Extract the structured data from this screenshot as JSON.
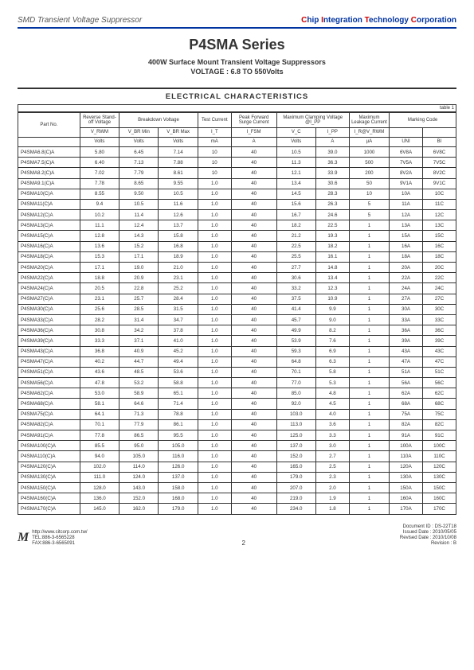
{
  "header": {
    "left": "SMD Transient Voltage Suppressor",
    "right_parts": [
      "C",
      "hip ",
      "I",
      "ntegration ",
      "T",
      "echnology ",
      "C",
      "orporation"
    ]
  },
  "title": "P4SMA Series",
  "subtitle_line1": "400W Surface Mount Transient Voltage Suppressors",
  "subtitle_line2": "VOLTAGE : 6.8 TO 550Volts",
  "section": "ELECTRICAL CHARACTERISTICS",
  "table_label": "table 1",
  "columns_group": [
    {
      "label": "Part No.",
      "span": 1,
      "rowspan": 2
    },
    {
      "label": "Reverse Stand-off Voltage",
      "span": 1
    },
    {
      "label": "Breakdown Voltage",
      "span": 2
    },
    {
      "label": "Test Current",
      "span": 1
    },
    {
      "label": "Peak Forward Surge Current",
      "span": 1
    },
    {
      "label": "Maximum Clamping Voltage @I_PP",
      "span": 2
    },
    {
      "label": "Maximum Leakage Current",
      "span": 1
    },
    {
      "label": "Marking Code",
      "span": 2
    }
  ],
  "columns_sym": [
    "V_RWM",
    "V_BR Min",
    "V_BR Max",
    "I_T",
    "I_FSM",
    "V_C",
    "I_PP",
    "I_R@V_RWM",
    "",
    ""
  ],
  "columns_unit": [
    "Volts",
    "Volts",
    "Volts",
    "mA",
    "A",
    "Volts",
    "A",
    "μA",
    "UNI",
    "BI"
  ],
  "rows": [
    [
      "P4SMA6.8(C)A",
      "5.80",
      "6.45",
      "7.14",
      "10",
      "40",
      "10.5",
      "39.0",
      "1000",
      "6V8A",
      "6V8C"
    ],
    [
      "P4SMA7.5(C)A",
      "6.40",
      "7.13",
      "7.88",
      "10",
      "40",
      "11.3",
      "36.3",
      "500",
      "7V5A",
      "7V5C"
    ],
    [
      "P4SMA8.2(C)A",
      "7.02",
      "7.79",
      "8.61",
      "10",
      "40",
      "12.1",
      "33.9",
      "200",
      "8V2A",
      "8V2C"
    ],
    [
      "P4SMA9.1(C)A",
      "7.78",
      "8.65",
      "9.55",
      "1.0",
      "40",
      "13.4",
      "30.6",
      "50",
      "9V1A",
      "9V1C"
    ],
    [
      "P4SMA10(C)A",
      "8.55",
      "9.50",
      "10.5",
      "1.0",
      "40",
      "14.5",
      "28.3",
      "10",
      "10A",
      "10C"
    ],
    [
      "P4SMA11(C)A",
      "9.4",
      "10.5",
      "11.6",
      "1.0",
      "40",
      "15.6",
      "26.3",
      "5",
      "11A",
      "11C"
    ],
    [
      "P4SMA12(C)A",
      "10.2",
      "11.4",
      "12.6",
      "1.0",
      "40",
      "16.7",
      "24.6",
      "5",
      "12A",
      "12C"
    ],
    [
      "P4SMA13(C)A",
      "11.1",
      "12.4",
      "13.7",
      "1.0",
      "40",
      "18.2",
      "22.5",
      "1",
      "13A",
      "13C"
    ],
    [
      "P4SMA15(C)A",
      "12.8",
      "14.3",
      "15.8",
      "1.0",
      "40",
      "21.2",
      "19.3",
      "1",
      "15A",
      "15C"
    ],
    [
      "P4SMA16(C)A",
      "13.6",
      "15.2",
      "16.8",
      "1.0",
      "40",
      "22.5",
      "18.2",
      "1",
      "16A",
      "16C"
    ],
    [
      "P4SMA18(C)A",
      "15.3",
      "17.1",
      "18.9",
      "1.0",
      "40",
      "25.5",
      "16.1",
      "1",
      "18A",
      "18C"
    ],
    [
      "P4SMA20(C)A",
      "17.1",
      "19.0",
      "21.0",
      "1.0",
      "40",
      "27.7",
      "14.8",
      "1",
      "20A",
      "20C"
    ],
    [
      "P4SMA22(C)A",
      "18.8",
      "20.9",
      "23.1",
      "1.0",
      "40",
      "30.6",
      "13.4",
      "1",
      "22A",
      "22C"
    ],
    [
      "P4SMA24(C)A",
      "20.5",
      "22.8",
      "25.2",
      "1.0",
      "40",
      "33.2",
      "12.3",
      "1",
      "24A",
      "24C"
    ],
    [
      "P4SMA27(C)A",
      "23.1",
      "25.7",
      "28.4",
      "1.0",
      "40",
      "37.5",
      "10.9",
      "1",
      "27A",
      "27C"
    ],
    [
      "P4SMA30(C)A",
      "25.6",
      "28.5",
      "31.5",
      "1.0",
      "40",
      "41.4",
      "9.9",
      "1",
      "30A",
      "30C"
    ],
    [
      "P4SMA33(C)A",
      "28.2",
      "31.4",
      "34.7",
      "1.0",
      "40",
      "45.7",
      "9.0",
      "1",
      "33A",
      "33C"
    ],
    [
      "P4SMA36(C)A",
      "30.8",
      "34.2",
      "37.8",
      "1.0",
      "40",
      "49.9",
      "8.2",
      "1",
      "36A",
      "36C"
    ],
    [
      "P4SMA39(C)A",
      "33.3",
      "37.1",
      "41.0",
      "1.0",
      "40",
      "53.9",
      "7.6",
      "1",
      "39A",
      "39C"
    ],
    [
      "P4SMA43(C)A",
      "36.8",
      "40.9",
      "45.2",
      "1.0",
      "40",
      "59.3",
      "6.9",
      "1",
      "43A",
      "43C"
    ],
    [
      "P4SMA47(C)A",
      "40.2",
      "44.7",
      "49.4",
      "1.0",
      "40",
      "64.8",
      "6.3",
      "1",
      "47A",
      "47C"
    ],
    [
      "P4SMA51(C)A",
      "43.6",
      "48.5",
      "53.6",
      "1.0",
      "40",
      "70.1",
      "5.8",
      "1",
      "51A",
      "51C"
    ],
    [
      "P4SMA56(C)A",
      "47.8",
      "53.2",
      "58.8",
      "1.0",
      "40",
      "77.0",
      "5.3",
      "1",
      "56A",
      "56C"
    ],
    [
      "P4SMA62(C)A",
      "53.0",
      "58.9",
      "65.1",
      "1.0",
      "40",
      "85.0",
      "4.8",
      "1",
      "62A",
      "62C"
    ],
    [
      "P4SMA68(C)A",
      "58.1",
      "64.6",
      "71.4",
      "1.0",
      "40",
      "92.0",
      "4.5",
      "1",
      "68A",
      "68C"
    ],
    [
      "P4SMA75(C)A",
      "64.1",
      "71.3",
      "78.8",
      "1.0",
      "40",
      "103.0",
      "4.0",
      "1",
      "75A",
      "75C"
    ],
    [
      "P4SMA82(C)A",
      "70.1",
      "77.9",
      "86.1",
      "1.0",
      "40",
      "113.0",
      "3.6",
      "1",
      "82A",
      "82C"
    ],
    [
      "P4SMA91(C)A",
      "77.8",
      "86.5",
      "95.5",
      "1.0",
      "40",
      "125.0",
      "3.3",
      "1",
      "91A",
      "91C"
    ],
    [
      "P4SMA100(C)A",
      "85.5",
      "95.0",
      "105.0",
      "1.0",
      "40",
      "137.0",
      "3.0",
      "1",
      "100A",
      "100C"
    ],
    [
      "P4SMA110(C)A",
      "94.0",
      "105.0",
      "116.0",
      "1.0",
      "40",
      "152.0",
      "2.7",
      "1",
      "110A",
      "110C"
    ],
    [
      "P4SMA120(C)A",
      "102.0",
      "114.0",
      "126.0",
      "1.0",
      "40",
      "165.0",
      "2.5",
      "1",
      "120A",
      "120C"
    ],
    [
      "P4SMA130(C)A",
      "111.0",
      "124.0",
      "137.0",
      "1.0",
      "40",
      "179.0",
      "2.3",
      "1",
      "130A",
      "130C"
    ],
    [
      "P4SMA150(C)A",
      "128.0",
      "143.0",
      "158.0",
      "1.0",
      "40",
      "207.0",
      "2.0",
      "1",
      "150A",
      "150C"
    ],
    [
      "P4SMA160(C)A",
      "136.0",
      "152.0",
      "168.0",
      "1.0",
      "40",
      "219.0",
      "1.9",
      "1",
      "160A",
      "160C"
    ],
    [
      "P4SMA170(C)A",
      "145.0",
      "162.0",
      "179.0",
      "1.0",
      "40",
      "234.0",
      "1.8",
      "1",
      "170A",
      "170C"
    ]
  ],
  "footer": {
    "url": "http://www.citcorp.com.tw/",
    "tel": "TEL:886-3-6565228",
    "fax": "FAX:886-3-6565091",
    "page": "2",
    "doc_id": "Document ID : DS-22T18",
    "issued": "Issued Date : 2010/05/05",
    "revised": "Revised Date : 2010/10/08",
    "revision": "Revision : B"
  },
  "col_widths": [
    "63",
    "40",
    "40",
    "40",
    "34",
    "46",
    "40",
    "34",
    "40",
    "34",
    "34"
  ]
}
